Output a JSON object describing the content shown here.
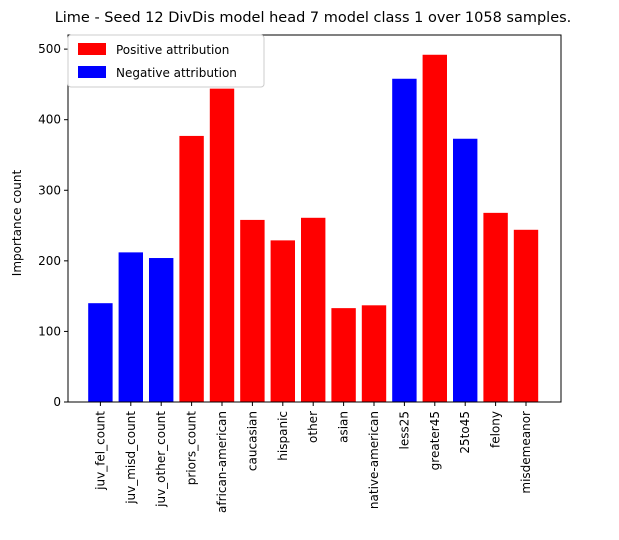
{
  "chart_data": {
    "type": "bar",
    "title": "Lime - Seed 12 DivDis model head 7 model class 1 over 1058 samples.",
    "xlabel": "",
    "ylabel": "Importance count",
    "ylim": [
      0,
      520
    ],
    "yticks": [
      0,
      100,
      200,
      300,
      400,
      500
    ],
    "grid": false,
    "legend_position": "top-left",
    "legend": [
      {
        "label": "Positive attribution",
        "color": "#ff0000"
      },
      {
        "label": "Negative attribution",
        "color": "#0000ff"
      }
    ],
    "categories": [
      "juv_fel_count",
      "juv_misd_count",
      "juv_other_count",
      "priors_count",
      "african-american",
      "caucasian",
      "hispanic",
      "other",
      "asian",
      "native-american",
      "less25",
      "greater45",
      "25to45",
      "felony",
      "misdemeanor"
    ],
    "values": [
      140,
      212,
      204,
      377,
      444,
      258,
      229,
      261,
      133,
      137,
      458,
      492,
      373,
      268,
      244
    ],
    "attribution": [
      "negative",
      "negative",
      "negative",
      "positive",
      "positive",
      "positive",
      "positive",
      "positive",
      "positive",
      "positive",
      "negative",
      "positive",
      "negative",
      "positive",
      "positive"
    ],
    "colors": {
      "positive": "#ff0000",
      "negative": "#0000ff"
    }
  }
}
